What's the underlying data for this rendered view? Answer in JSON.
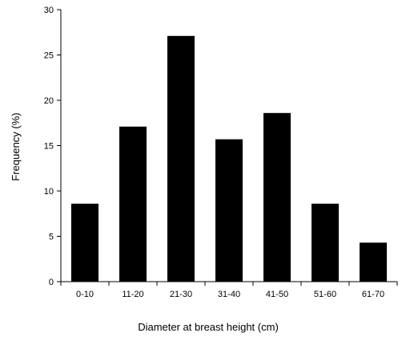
{
  "chart_data": {
    "type": "bar",
    "categories": [
      "0-10",
      "11-20",
      "21-30",
      "31-40",
      "41-50",
      "51-60",
      "61-70"
    ],
    "values": [
      8.6,
      17.1,
      27.1,
      15.7,
      18.6,
      8.6,
      4.3
    ],
    "xlabel": "Diameter at breast height (cm)",
    "ylabel": "Frequency (%)",
    "ylim": [
      0,
      30
    ],
    "yticks": [
      "0",
      "5",
      "10",
      "15",
      "20",
      "25",
      "30"
    ],
    "bar_color": "#000000",
    "grid": false,
    "legend": "none"
  }
}
